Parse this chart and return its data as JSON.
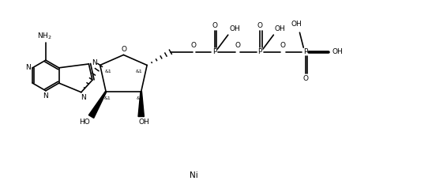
{
  "background_color": "#ffffff",
  "line_color": "#000000",
  "lw": 1.2,
  "figure_width": 5.47,
  "figure_height": 2.43,
  "dpi": 100,
  "xlim": [
    0,
    14.5
  ],
  "ylim": [
    0,
    6.5
  ],
  "fs": 6.5
}
